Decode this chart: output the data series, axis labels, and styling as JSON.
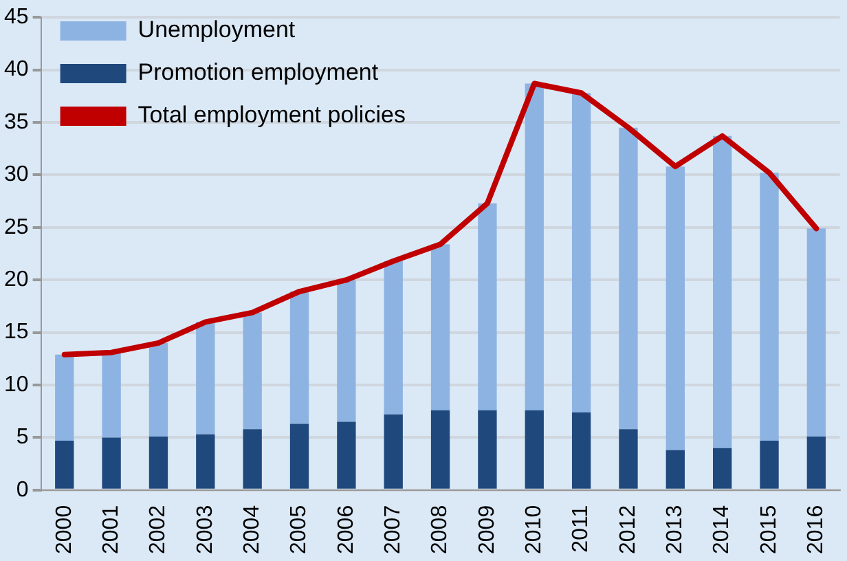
{
  "chart_data": {
    "type": "bar",
    "stacked": true,
    "categories": [
      "2000",
      "2001",
      "2002",
      "2003",
      "2004",
      "2005",
      "2006",
      "2007",
      "2008",
      "2009",
      "2010",
      "2011",
      "2012",
      "2013",
      "2014",
      "2015",
      "2016"
    ],
    "series": [
      {
        "name": "Promotion employment",
        "color": "#1f497d",
        "values": [
          4.7,
          5.0,
          5.1,
          5.3,
          5.8,
          6.3,
          6.5,
          7.2,
          7.6,
          7.6,
          7.6,
          7.4,
          5.8,
          3.8,
          4.0,
          4.7,
          5.1
        ]
      },
      {
        "name": "Unemployment",
        "color": "#8db3e2",
        "values": [
          8.2,
          8.1,
          8.9,
          10.7,
          11.1,
          12.6,
          13.5,
          14.6,
          15.8,
          19.7,
          31.1,
          30.4,
          28.7,
          27.0,
          29.7,
          25.5,
          19.8
        ]
      },
      {
        "name": "Total employment policies",
        "type": "line",
        "color": "#c00000",
        "values": [
          12.9,
          13.1,
          14.0,
          16.0,
          16.9,
          18.9,
          20.0,
          21.8,
          23.4,
          27.3,
          38.7,
          37.8,
          34.5,
          30.8,
          33.7,
          30.2,
          24.9
        ]
      }
    ],
    "ylim": [
      0,
      45
    ],
    "yticks": [
      0,
      5,
      10,
      15,
      20,
      25,
      30,
      35,
      40,
      45
    ],
    "grid": "y",
    "legend": "top left",
    "marker": "none"
  }
}
